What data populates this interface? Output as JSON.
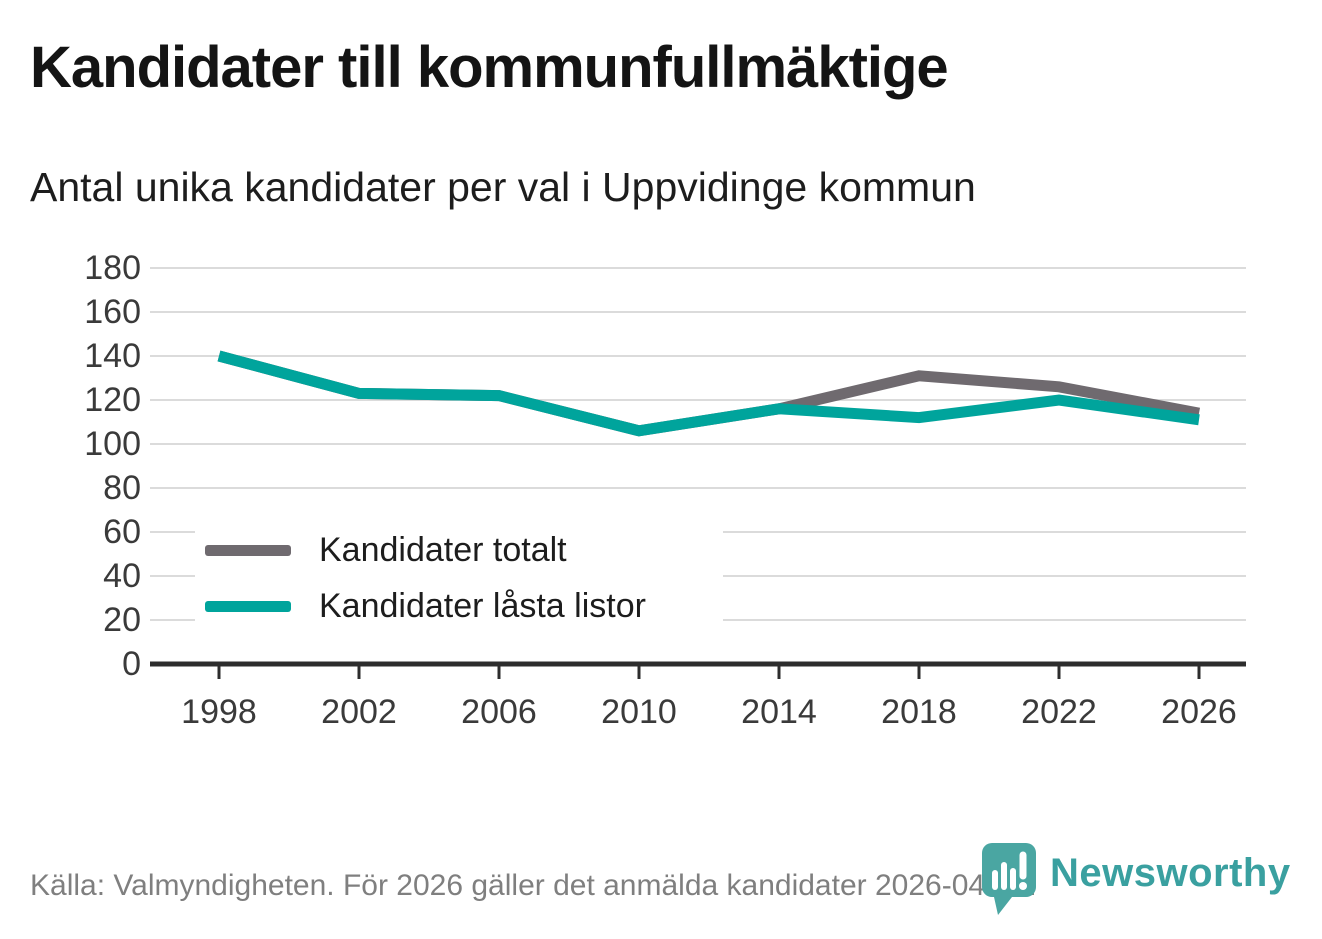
{
  "title": "Kandidater till kommunfullmäktige",
  "subtitle": "Antal unika kandidater per val i Uppvidinge kommun",
  "footer": {
    "source_text": "Källa: Valmyndigheten. För 2026 gäller det anmälda kandidater 2026-04-10.",
    "brand": "Newsworthy"
  },
  "colors": {
    "gridline": "#dbdbdb",
    "axis": "#2d2d2d",
    "tick_label": "#3a3a3a",
    "title": "#141414",
    "footer_text": "#7f7f7f",
    "brand_teal": "#3aa0a0",
    "logo_fill": "#4aa6a2",
    "series_total": "#6f6a6f",
    "series_locked": "#00a49c"
  },
  "chart_data": {
    "type": "line",
    "x": [
      1998,
      2002,
      2006,
      2010,
      2014,
      2018,
      2022,
      2026
    ],
    "series": [
      {
        "name": "Kandidater totalt",
        "color": "#6f6a6f",
        "values": [
          140,
          123,
          122,
          106,
          116,
          131,
          126,
          114
        ]
      },
      {
        "name": "Kandidater låsta listor",
        "color": "#00a49c",
        "values": [
          140,
          123,
          122,
          106,
          116,
          112,
          120,
          111
        ]
      }
    ],
    "xlabel": "",
    "ylabel": "",
    "ylim": [
      0,
      180
    ],
    "ytick_step": 20,
    "grid": true,
    "legend_position": "inside-bottom-left",
    "note": "Series overlap 1998–2014; totalt hidden behind låsta listor"
  }
}
